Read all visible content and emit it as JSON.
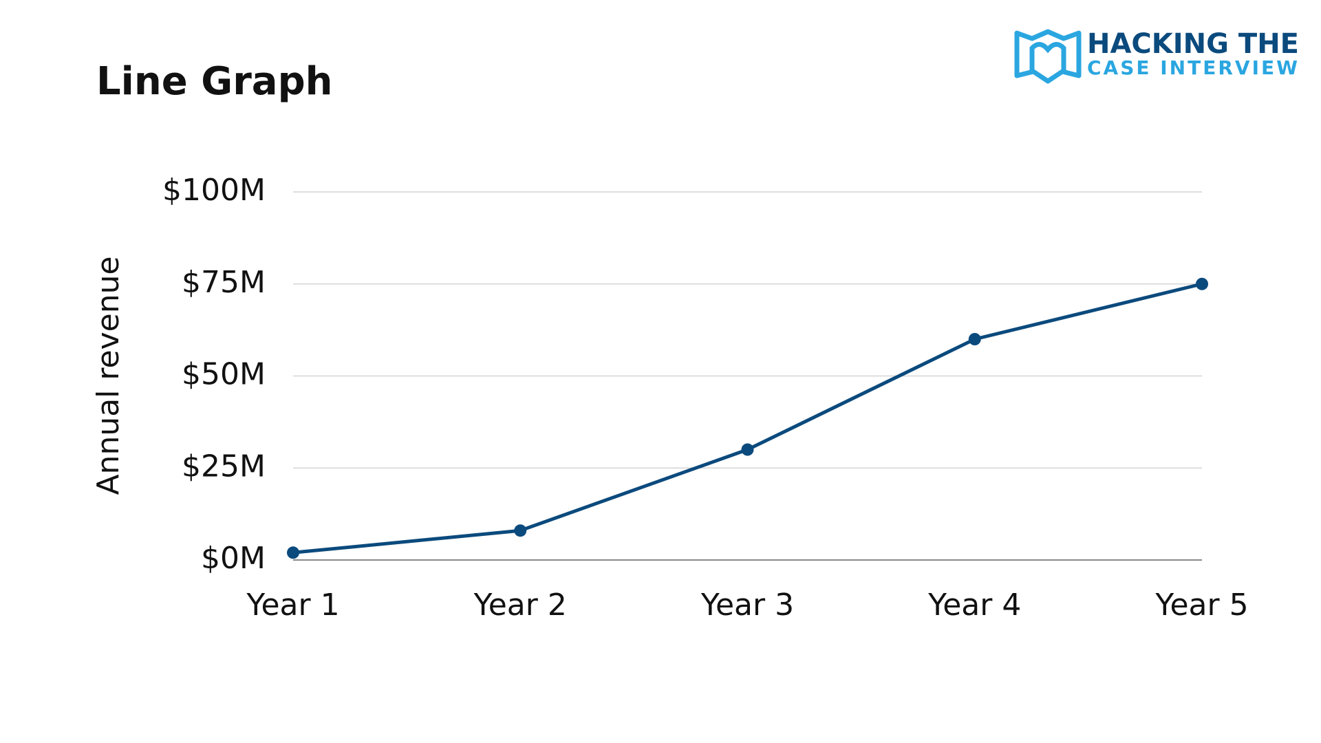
{
  "chart_data": {
    "type": "line",
    "title": "Line Graph",
    "logo": {
      "line1": "HACKING THE",
      "line2": "CASE INTERVIEW"
    },
    "y_label": "Annual revenue",
    "categories": [
      "Year 1",
      "Year 2",
      "Year 3",
      "Year 4",
      "Year 5"
    ],
    "series": [
      {
        "name": "Annual revenue",
        "color": "#0b4a7d",
        "values": [
          2000000,
          8000000,
          30000000,
          60000000,
          75000000
        ]
      }
    ],
    "ylim": [
      0,
      100000000
    ],
    "yticks": [
      {
        "value": 0,
        "label": "$0M"
      },
      {
        "value": 25000000,
        "label": "$25M"
      },
      {
        "value": 50000000,
        "label": "$50M"
      },
      {
        "value": 75000000,
        "label": "$75M"
      },
      {
        "value": 100000000,
        "label": "$100M"
      }
    ],
    "grid": true
  }
}
